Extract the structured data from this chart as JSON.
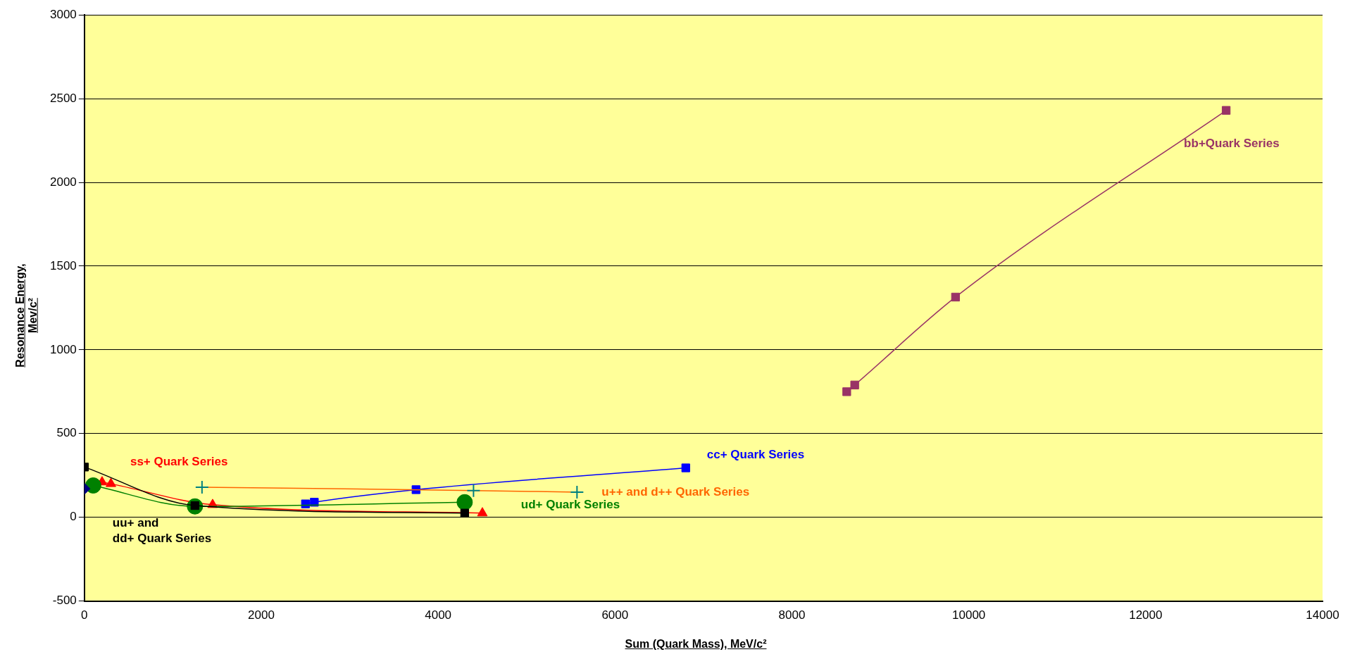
{
  "chart_data": {
    "type": "line",
    "xlabel": "Sum (Quark Mass), MeV/c²",
    "ylabel": "Resonance Energy, Mev/c²",
    "xlim": [
      0,
      14000
    ],
    "xticks": [
      0,
      2000,
      4000,
      6000,
      8000,
      10000,
      12000,
      14000
    ],
    "ylim": [
      -500,
      3000
    ],
    "yticks": [
      -500,
      0,
      500,
      1000,
      1500,
      2000,
      2500,
      3000
    ],
    "grid": "y",
    "legend": false,
    "series": [
      {
        "name": "uu+ and dd+ Quark Series",
        "color": "#000000",
        "marker": "square",
        "x": [
          0,
          1250,
          4300
        ],
        "values": [
          300,
          70,
          25
        ]
      },
      {
        "type": "scatter",
        "color": "#000080",
        "marker": "diamond",
        "x": [
          0
        ],
        "values": [
          170
        ]
      },
      {
        "name": "ud+ Quark Series",
        "color": "#008000",
        "marker": "circle",
        "x": [
          100,
          1250,
          4300
        ],
        "values": [
          190,
          65,
          90
        ]
      },
      {
        "name": "ss+ Quark Series",
        "color": "#ff0000",
        "marker": "triangle",
        "x": [
          200,
          300,
          1450,
          4500
        ],
        "values": [
          210,
          200,
          75,
          25
        ]
      },
      {
        "name": "u++ and d++ Quark Series",
        "color": "#ff6600",
        "colors": [
          "#008080",
          "#008080",
          "#008080"
        ],
        "marker": "cross",
        "x": [
          1330,
          4400,
          5570
        ],
        "values": [
          180,
          160,
          150
        ]
      },
      {
        "name": "cc+ Quark Series",
        "color": "#0000ff",
        "marker": "square",
        "x": [
          2500,
          2600,
          3750,
          6800
        ],
        "values": [
          80,
          90,
          165,
          295
        ]
      },
      {
        "name": "bb+Quark Series",
        "color": "#993366",
        "marker": "square",
        "x": [
          8620,
          8710,
          9850,
          12910
        ],
        "values": [
          750,
          790,
          1315,
          2430
        ]
      }
    ]
  }
}
